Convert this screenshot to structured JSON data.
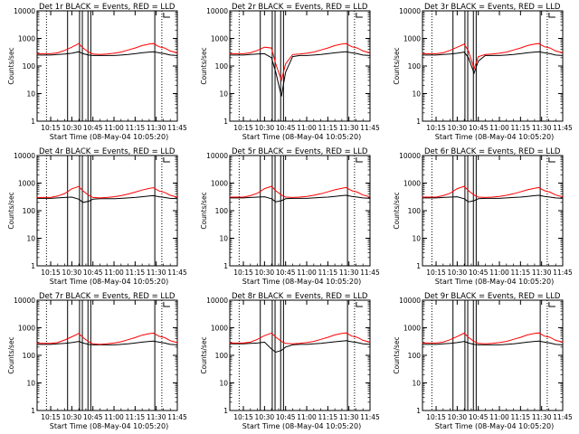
{
  "figure": {
    "background": "#ffffff",
    "colors": {
      "events": "#000000",
      "lld": "#ff0000",
      "axes": "#000000"
    }
  },
  "chart_data": [
    {
      "type": "line",
      "title": "Det 1r BLACK = Events, RED = LLD",
      "xlabel": "Start Time (08-May-04 10:05:20)",
      "ylabel": "Counts/sec",
      "x_ticks": [
        "10:15",
        "10:30",
        "10:45",
        "11:00",
        "11:15",
        "11:30",
        "11:45"
      ],
      "y_ticks": [
        "1",
        "10",
        "100",
        "1000",
        "10000"
      ],
      "yscale": "log",
      "ylim": [
        1,
        10000
      ],
      "x": [
        "10:05",
        "10:15",
        "10:20",
        "10:25",
        "10:30",
        "10:35",
        "10:38",
        "10:42",
        "10:45",
        "10:50",
        "10:55",
        "11:00",
        "11:05",
        "11:10",
        "11:15",
        "11:20",
        "11:25",
        "11:28",
        "11:32",
        "11:36",
        "11:40",
        "11:45"
      ],
      "series": [
        {
          "name": "Events",
          "values": [
            250,
            250,
            260,
            270,
            290,
            330,
            280,
            250,
            240,
            240,
            240,
            240,
            250,
            260,
            280,
            300,
            320,
            330,
            300,
            280,
            250,
            240
          ]
        },
        {
          "name": "LLD",
          "values": [
            280,
            280,
            300,
            370,
            480,
            650,
            450,
            320,
            270,
            260,
            270,
            290,
            320,
            380,
            450,
            550,
            620,
            650,
            500,
            450,
            350,
            300
          ]
        }
      ]
    },
    {
      "type": "line",
      "title": "Det 2r BLACK = Events, RED = LLD",
      "xlabel": "Start Time (08-May-04 10:05:20)",
      "ylabel": "Counts/sec",
      "x_ticks": [
        "10:15",
        "10:30",
        "10:45",
        "11:00",
        "11:15",
        "11:30",
        "11:45"
      ],
      "y_ticks": [
        "1",
        "10",
        "100",
        "1000",
        "10000"
      ],
      "yscale": "log",
      "ylim": [
        1,
        10000
      ],
      "x": [
        "10:05",
        "10:15",
        "10:20",
        "10:25",
        "10:30",
        "10:35",
        "10:38",
        "10:42",
        "10:45",
        "10:50",
        "10:55",
        "11:00",
        "11:05",
        "11:10",
        "11:15",
        "11:20",
        "11:25",
        "11:28",
        "11:32",
        "11:36",
        "11:40",
        "11:45"
      ],
      "series": [
        {
          "name": "Events",
          "values": [
            250,
            250,
            260,
            270,
            280,
            200,
            60,
            8,
            60,
            220,
            240,
            240,
            250,
            260,
            280,
            300,
            320,
            330,
            300,
            280,
            250,
            240
          ]
        },
        {
          "name": "LLD",
          "values": [
            280,
            280,
            300,
            370,
            480,
            450,
            120,
            30,
            120,
            260,
            270,
            290,
            320,
            380,
            450,
            550,
            620,
            650,
            500,
            450,
            350,
            300
          ]
        }
      ]
    },
    {
      "type": "line",
      "title": "Det 3r BLACK = Events, RED = LLD",
      "xlabel": "Start Time (08-May-04 10:05:20)",
      "ylabel": "Counts/sec",
      "x_ticks": [
        "10:15",
        "10:30",
        "10:45",
        "11:00",
        "11:15",
        "11:30",
        "11:45"
      ],
      "y_ticks": [
        "1",
        "10",
        "100",
        "1000",
        "10000"
      ],
      "yscale": "log",
      "ylim": [
        1,
        10000
      ],
      "x": [
        "10:05",
        "10:15",
        "10:20",
        "10:25",
        "10:30",
        "10:35",
        "10:38",
        "10:42",
        "10:45",
        "10:50",
        "10:55",
        "11:00",
        "11:05",
        "11:10",
        "11:15",
        "11:20",
        "11:25",
        "11:28",
        "11:32",
        "11:36",
        "11:40",
        "11:45"
      ],
      "series": [
        {
          "name": "Events",
          "values": [
            250,
            250,
            260,
            270,
            290,
            320,
            200,
            55,
            150,
            240,
            240,
            240,
            250,
            260,
            280,
            300,
            320,
            330,
            300,
            280,
            250,
            240
          ]
        },
        {
          "name": "LLD",
          "values": [
            280,
            280,
            300,
            370,
            480,
            620,
            350,
            80,
            220,
            260,
            270,
            290,
            320,
            380,
            450,
            550,
            620,
            650,
            500,
            450,
            350,
            300
          ]
        }
      ]
    },
    {
      "type": "line",
      "title": "Det 4r BLACK = Events, RED = LLD",
      "xlabel": "Start Time (08-May-04 10:05:20)",
      "ylabel": "Counts/sec",
      "x_ticks": [
        "10:15",
        "10:30",
        "10:45",
        "11:00",
        "11:15",
        "11:30",
        "11:45"
      ],
      "y_ticks": [
        "1",
        "10",
        "100",
        "1000",
        "10000"
      ],
      "yscale": "log",
      "ylim": [
        1,
        10000
      ],
      "x": [
        "10:05",
        "10:15",
        "10:20",
        "10:25",
        "10:30",
        "10:35",
        "10:38",
        "10:42",
        "10:45",
        "10:50",
        "10:55",
        "11:00",
        "11:05",
        "11:10",
        "11:15",
        "11:20",
        "11:25",
        "11:28",
        "11:32",
        "11:36",
        "11:40",
        "11:45"
      ],
      "series": [
        {
          "name": "Events",
          "values": [
            280,
            280,
            290,
            300,
            310,
            260,
            200,
            220,
            260,
            270,
            270,
            270,
            280,
            290,
            300,
            320,
            340,
            350,
            320,
            300,
            280,
            270
          ]
        },
        {
          "name": "LLD",
          "values": [
            300,
            300,
            340,
            420,
            620,
            750,
            520,
            360,
            300,
            290,
            300,
            320,
            350,
            400,
            470,
            560,
            640,
            680,
            520,
            460,
            360,
            310
          ]
        }
      ]
    },
    {
      "type": "line",
      "title": "Det 5r BLACK = Events, RED = LLD",
      "xlabel": "Start Time (08-May-04 10:05:20)",
      "ylabel": "Counts/sec",
      "x_ticks": [
        "10:15",
        "10:30",
        "10:45",
        "11:00",
        "11:15",
        "11:30",
        "11:45"
      ],
      "y_ticks": [
        "1",
        "10",
        "100",
        "1000",
        "10000"
      ],
      "yscale": "log",
      "ylim": [
        1,
        10000
      ],
      "x": [
        "10:05",
        "10:15",
        "10:20",
        "10:25",
        "10:30",
        "10:35",
        "10:38",
        "10:42",
        "10:45",
        "10:50",
        "10:55",
        "11:00",
        "11:05",
        "11:10",
        "11:15",
        "11:20",
        "11:25",
        "11:28",
        "11:32",
        "11:36",
        "11:40",
        "11:45"
      ],
      "series": [
        {
          "name": "Events",
          "values": [
            290,
            290,
            300,
            310,
            320,
            270,
            210,
            230,
            270,
            280,
            280,
            280,
            290,
            300,
            310,
            330,
            350,
            360,
            330,
            310,
            290,
            280
          ]
        },
        {
          "name": "LLD",
          "values": [
            310,
            310,
            350,
            430,
            630,
            760,
            530,
            370,
            310,
            300,
            310,
            330,
            360,
            410,
            480,
            570,
            650,
            690,
            530,
            470,
            370,
            320
          ]
        }
      ]
    },
    {
      "type": "line",
      "title": "Det 6r BLACK = Events, RED = LLD",
      "xlabel": "Start Time (08-May-04 10:05:20)",
      "ylabel": "Counts/sec",
      "x_ticks": [
        "10:15",
        "10:30",
        "10:45",
        "11:00",
        "11:15",
        "11:30",
        "11:45"
      ],
      "y_ticks": [
        "1",
        "10",
        "100",
        "1000",
        "10000"
      ],
      "yscale": "log",
      "ylim": [
        1,
        10000
      ],
      "x": [
        "10:05",
        "10:15",
        "10:20",
        "10:25",
        "10:30",
        "10:35",
        "10:38",
        "10:42",
        "10:45",
        "10:50",
        "10:55",
        "11:00",
        "11:05",
        "11:10",
        "11:15",
        "11:20",
        "11:25",
        "11:28",
        "11:32",
        "11:36",
        "11:40",
        "11:45"
      ],
      "series": [
        {
          "name": "Events",
          "values": [
            290,
            290,
            300,
            310,
            320,
            270,
            210,
            230,
            270,
            280,
            280,
            280,
            290,
            300,
            310,
            330,
            350,
            360,
            330,
            310,
            290,
            280
          ]
        },
        {
          "name": "LLD",
          "values": [
            310,
            310,
            350,
            430,
            630,
            760,
            530,
            370,
            310,
            300,
            310,
            330,
            360,
            410,
            480,
            570,
            650,
            690,
            530,
            470,
            370,
            320
          ]
        }
      ]
    },
    {
      "type": "line",
      "title": "Det 7r BLACK = Events, RED = LLD",
      "xlabel": "Start Time (08-May-04 10:05:20)",
      "ylabel": "Counts/sec",
      "x_ticks": [
        "10:15",
        "10:30",
        "10:45",
        "11:00",
        "11:15",
        "11:30",
        "11:45"
      ],
      "y_ticks": [
        "1",
        "10",
        "100",
        "1000",
        "10000"
      ],
      "yscale": "log",
      "ylim": [
        1,
        10000
      ],
      "x": [
        "10:05",
        "10:15",
        "10:20",
        "10:25",
        "10:30",
        "10:35",
        "10:38",
        "10:42",
        "10:45",
        "10:50",
        "10:55",
        "11:00",
        "11:05",
        "11:10",
        "11:15",
        "11:20",
        "11:25",
        "11:28",
        "11:32",
        "11:36",
        "11:40",
        "11:45"
      ],
      "series": [
        {
          "name": "Events",
          "values": [
            250,
            250,
            260,
            270,
            290,
            320,
            280,
            250,
            240,
            240,
            240,
            240,
            250,
            260,
            280,
            300,
            320,
            330,
            300,
            280,
            250,
            240
          ]
        },
        {
          "name": "LLD",
          "values": [
            270,
            270,
            290,
            360,
            470,
            620,
            440,
            310,
            260,
            250,
            260,
            280,
            310,
            370,
            440,
            540,
            610,
            640,
            490,
            440,
            340,
            290
          ]
        }
      ]
    },
    {
      "type": "line",
      "title": "Det 8r BLACK = Events, RED = LLD",
      "xlabel": "Start Time (08-May-04 10:05:20)",
      "ylabel": "Counts/sec",
      "x_ticks": [
        "10:15",
        "10:30",
        "10:45",
        "11:00",
        "11:15",
        "11:30",
        "11:45"
      ],
      "y_ticks": [
        "1",
        "10",
        "100",
        "1000",
        "10000"
      ],
      "yscale": "log",
      "ylim": [
        1,
        10000
      ],
      "x": [
        "10:05",
        "10:15",
        "10:20",
        "10:25",
        "10:30",
        "10:35",
        "10:38",
        "10:42",
        "10:45",
        "10:50",
        "10:55",
        "11:00",
        "11:05",
        "11:10",
        "11:15",
        "11:20",
        "11:25",
        "11:28",
        "11:32",
        "11:36",
        "11:40",
        "11:45"
      ],
      "series": [
        {
          "name": "Events",
          "values": [
            260,
            260,
            270,
            280,
            300,
            170,
            130,
            150,
            200,
            240,
            250,
            250,
            260,
            270,
            290,
            310,
            330,
            340,
            310,
            290,
            260,
            250
          ]
        },
        {
          "name": "LLD",
          "values": [
            280,
            280,
            300,
            380,
            520,
            640,
            460,
            320,
            270,
            260,
            270,
            290,
            320,
            380,
            450,
            550,
            620,
            650,
            500,
            450,
            350,
            300
          ]
        }
      ]
    },
    {
      "type": "line",
      "title": "Det 9r BLACK = Events, RED = LLD",
      "xlabel": "Start Time (08-May-04 10:05:20)",
      "ylabel": "Counts/sec",
      "x_ticks": [
        "10:15",
        "10:30",
        "10:45",
        "11:00",
        "11:15",
        "11:30",
        "11:45"
      ],
      "y_ticks": [
        "1",
        "10",
        "100",
        "1000",
        "10000"
      ],
      "yscale": "log",
      "ylim": [
        1,
        10000
      ],
      "x": [
        "10:05",
        "10:15",
        "10:20",
        "10:25",
        "10:30",
        "10:35",
        "10:38",
        "10:42",
        "10:45",
        "10:50",
        "10:55",
        "11:00",
        "11:05",
        "11:10",
        "11:15",
        "11:20",
        "11:25",
        "11:28",
        "11:32",
        "11:36",
        "11:40",
        "11:45"
      ],
      "series": [
        {
          "name": "Events",
          "values": [
            250,
            250,
            260,
            270,
            290,
            320,
            280,
            250,
            240,
            240,
            240,
            240,
            250,
            260,
            280,
            300,
            320,
            330,
            300,
            280,
            250,
            240
          ]
        },
        {
          "name": "LLD",
          "values": [
            280,
            280,
            300,
            370,
            480,
            640,
            450,
            320,
            270,
            260,
            270,
            290,
            320,
            380,
            450,
            550,
            620,
            650,
            500,
            450,
            350,
            300
          ]
        }
      ]
    }
  ]
}
